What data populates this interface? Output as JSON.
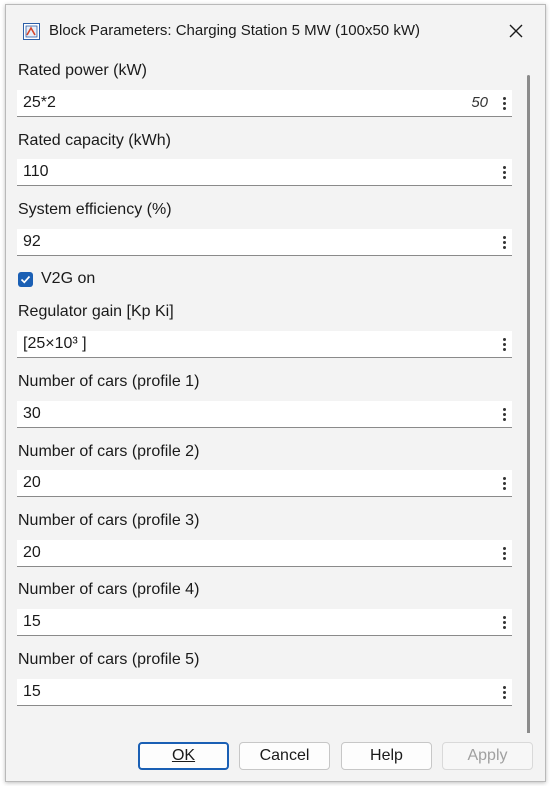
{
  "window": {
    "title": "Block Parameters: Charging Station 5 MW (100x50 kW)",
    "close_icon": "close-icon",
    "app_icon": "simulink-block-icon"
  },
  "params": [
    {
      "label": "Rated power (kW)",
      "value": "25*2",
      "evaluated": "50"
    },
    {
      "label": "Rated capacity (kWh)",
      "value": "110"
    },
    {
      "label": "System efficiency (%)",
      "value": "92"
    },
    {
      "label": "Regulator gain [Kp Ki]",
      "value": "[25×10³ ]"
    },
    {
      "label": "Number of cars  (profile 1)",
      "value": "30"
    },
    {
      "label": "Number of cars  (profile 2)",
      "value": "20"
    },
    {
      "label": "Number of cars  (profile 3)",
      "value": "20"
    },
    {
      "label": "Number of cars  (profile 4)",
      "value": "15"
    },
    {
      "label": "Number of cars  (profile 5)",
      "value": "15"
    }
  ],
  "v2g": {
    "label": "V2G on",
    "checked": true
  },
  "buttons": {
    "ok": "OK",
    "cancel": "Cancel",
    "help": "Help",
    "apply": "Apply"
  },
  "colors": {
    "accent": "#1a5fb4",
    "background": "#f3f3f3"
  }
}
